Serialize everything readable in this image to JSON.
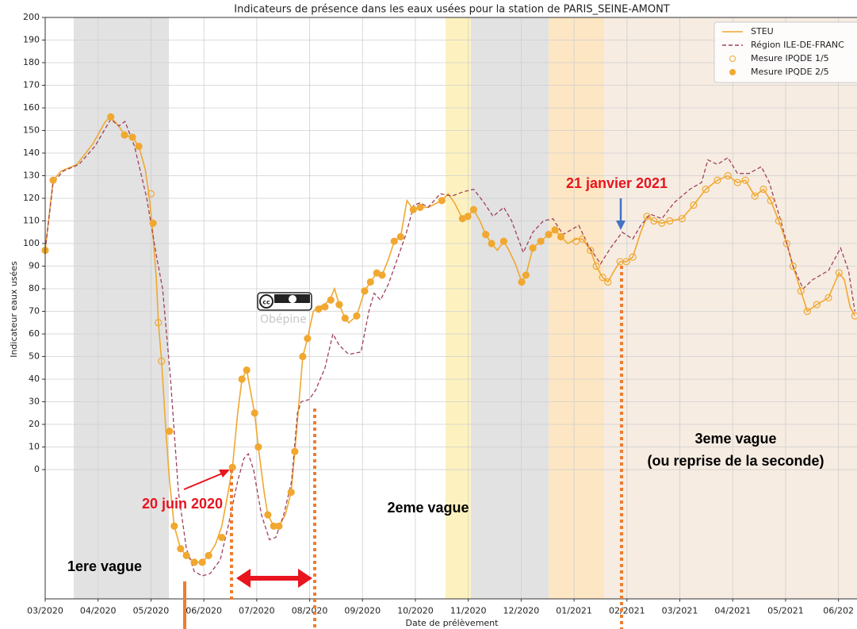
{
  "chart_data": {
    "type": "line",
    "title": "Indicateurs de présence dans les eaux usées pour la station de PARIS_SEINE-AMONT",
    "xlabel": "Date de prélèvement",
    "ylabel": "Indicateur eaux usées",
    "xlim": [
      0,
      15.35
    ],
    "ylim": [
      -57,
      200
    ],
    "xticks": [
      {
        "value": 0,
        "label": "03/2020"
      },
      {
        "value": 1,
        "label": "04/2020"
      },
      {
        "value": 2,
        "label": "05/2020"
      },
      {
        "value": 3,
        "label": "06/2020"
      },
      {
        "value": 4,
        "label": "07/2020"
      },
      {
        "value": 5,
        "label": "08/2020"
      },
      {
        "value": 6,
        "label": "09/2020"
      },
      {
        "value": 7,
        "label": "10/2020"
      },
      {
        "value": 8,
        "label": "11/2020"
      },
      {
        "value": 9,
        "label": "12/2020"
      },
      {
        "value": 10,
        "label": "01/2021"
      },
      {
        "value": 11,
        "label": "02/2021"
      },
      {
        "value": 12,
        "label": "03/2021"
      },
      {
        "value": 13,
        "label": "04/2021"
      },
      {
        "value": 14,
        "label": "05/2021"
      },
      {
        "value": 15,
        "label": "06/202"
      }
    ],
    "yticks": [
      0,
      10,
      20,
      30,
      40,
      50,
      60,
      70,
      80,
      90,
      100,
      110,
      120,
      130,
      140,
      150,
      160,
      170,
      180,
      190,
      200
    ],
    "grid": true,
    "legend": "upper right",
    "bands": [
      {
        "start": 0.54,
        "end": 2.34,
        "color": "#e2e2e2"
      },
      {
        "start": 7.57,
        "end": 8.05,
        "color": "#fdf2bf"
      },
      {
        "start": 8.05,
        "end": 9.52,
        "color": "#e2e2e2"
      },
      {
        "start": 9.52,
        "end": 10.57,
        "color": "#fde6c3"
      },
      {
        "start": 10.57,
        "end": 15.35,
        "color": "#f6ece2"
      }
    ],
    "series": [
      {
        "name": "STEU",
        "color": "#f0a830",
        "style": "line",
        "x": [
          0,
          0.15,
          0.3,
          0.6,
          0.9,
          1.14,
          1.24,
          1.39,
          1.5,
          1.65,
          1.77,
          1.89,
          1.96,
          2.02,
          2.1,
          2.14,
          2.2,
          2.28,
          2.35,
          2.44,
          2.56,
          2.67,
          2.82,
          2.97,
          3.09,
          3.22,
          3.34,
          3.46,
          3.54,
          3.64,
          3.72,
          3.81,
          3.88,
          3.96,
          4.03,
          4.14,
          4.21,
          4.32,
          4.42,
          4.54,
          4.65,
          4.72,
          4.8,
          4.87,
          4.96,
          5.07,
          5.17,
          5.29,
          5.4,
          5.47,
          5.56,
          5.67,
          5.74,
          5.89,
          6.04,
          6.15,
          6.27,
          6.37,
          6.49,
          6.6,
          6.72,
          6.84,
          6.96,
          7.09,
          7.24,
          7.5,
          7.62,
          7.74,
          7.89,
          7.99,
          8.1,
          8.22,
          8.33,
          8.44,
          8.55,
          8.67,
          8.77,
          8.89,
          9.01,
          9.09,
          9.22,
          9.37,
          9.52,
          9.64,
          9.75,
          9.88,
          10.04,
          10.16,
          10.31,
          10.42,
          10.54,
          10.64,
          10.76,
          10.87,
          10.99,
          11.11,
          11.26,
          11.38,
          11.51,
          11.66,
          11.81,
          12.04,
          12.26,
          12.49,
          12.71,
          12.91,
          13.09,
          13.24,
          13.42,
          13.58,
          13.72,
          13.87,
          14.02,
          14.14,
          14.29,
          14.41,
          14.59,
          14.81,
          15.01,
          15.11,
          15.22,
          15.31
        ],
        "values": [
          97,
          128,
          132,
          135,
          144,
          154,
          156,
          152,
          148,
          147,
          143,
          133,
          122,
          109,
          85,
          65,
          48,
          18,
          -5,
          -25,
          -35,
          -38,
          -41,
          -41,
          -38,
          -33,
          -25,
          -10,
          1,
          25,
          40,
          44,
          35,
          25,
          10,
          -10,
          -20,
          -25,
          -25,
          -20,
          -10,
          8,
          30,
          50,
          58,
          70,
          72,
          73,
          76,
          80,
          73,
          67,
          65,
          68,
          79,
          83,
          87,
          86,
          93,
          101,
          103,
          119,
          115,
          116,
          116,
          119,
          122,
          118,
          111,
          112,
          115,
          110,
          104,
          100,
          97,
          101,
          97,
          91,
          83,
          86,
          98,
          101,
          104,
          106,
          103,
          100,
          102,
          102,
          97,
          90,
          85,
          83,
          88,
          92,
          92,
          94,
          105,
          112,
          110,
          109,
          110,
          111,
          117,
          124,
          128,
          130,
          127,
          128,
          121,
          124,
          119,
          110,
          100,
          90,
          79,
          70,
          73,
          76,
          87,
          84,
          72,
          68
        ]
      },
      {
        "name": "Région ILE-DE-FRANC",
        "color": "#a0405a",
        "style": "dashed",
        "x": [
          0,
          0.15,
          0.34,
          0.64,
          0.94,
          1.24,
          1.39,
          1.51,
          1.69,
          1.92,
          2.1,
          2.22,
          2.37,
          2.52,
          2.67,
          2.82,
          2.97,
          3.12,
          3.31,
          3.46,
          3.64,
          3.76,
          3.84,
          3.94,
          4.09,
          4.24,
          4.36,
          4.51,
          4.66,
          4.77,
          4.84,
          4.99,
          5.11,
          5.29,
          5.44,
          5.56,
          5.74,
          5.97,
          6.12,
          6.22,
          6.34,
          6.49,
          6.64,
          6.82,
          6.97,
          7.09,
          7.24,
          7.47,
          7.69,
          7.92,
          8.1,
          8.3,
          8.47,
          8.67,
          8.82,
          9.04,
          9.22,
          9.42,
          9.6,
          9.79,
          9.94,
          10.09,
          10.27,
          10.5,
          10.69,
          10.91,
          11.11,
          11.26,
          11.44,
          11.66,
          11.89,
          12.19,
          12.41,
          12.53,
          12.71,
          12.91,
          13.09,
          13.31,
          13.54,
          13.69,
          13.91,
          14.14,
          14.33,
          14.51,
          14.81,
          15.04,
          15.19,
          15.31
        ],
        "values": [
          97,
          127,
          132,
          135,
          143,
          155,
          152,
          154,
          143,
          120,
          95,
          80,
          40,
          -10,
          -35,
          -45,
          -47,
          -46,
          -40,
          -25,
          -5,
          5,
          7,
          0,
          -20,
          -31,
          -30,
          -20,
          -5,
          25,
          30,
          31,
          35,
          45,
          60,
          55,
          51,
          52,
          70,
          78,
          75,
          82,
          92,
          104,
          117,
          118,
          116,
          122,
          121,
          123,
          124,
          118,
          112,
          116,
          110,
          96,
          105,
          110,
          111,
          104,
          106,
          108,
          99,
          91,
          98,
          105,
          102,
          108,
          113,
          111,
          118,
          124,
          127,
          137,
          135,
          138,
          131,
          131,
          134,
          127,
          110,
          90,
          80,
          84,
          88,
          98,
          88,
          70
        ]
      },
      {
        "name": "Mesure IPQDE 1/5",
        "color": "#f0a830",
        "style": "hollow",
        "x": [
          2.0,
          2.14,
          2.2,
          10.04,
          10.16,
          10.31,
          10.42,
          10.54,
          10.64,
          10.87,
          10.99,
          11.11,
          11.38,
          11.51,
          11.66,
          11.81,
          12.04,
          12.26,
          12.49,
          12.71,
          12.91,
          13.09,
          13.24,
          13.42,
          13.58,
          13.72,
          13.87,
          14.02,
          14.14,
          14.29,
          14.41,
          14.59,
          14.81,
          15.01,
          15.31
        ],
        "values": [
          122,
          65,
          48,
          101,
          102,
          97,
          90,
          85,
          83,
          92,
          92,
          94,
          112,
          110,
          109,
          110,
          111,
          117,
          124,
          128,
          130,
          127,
          128,
          121,
          124,
          119,
          110,
          100,
          90,
          79,
          70,
          73,
          76,
          87,
          68
        ]
      },
      {
        "name": "Mesure IPQDE 2/5",
        "color": "#f0a830",
        "style": "filled",
        "x": [
          0,
          0.15,
          1.24,
          1.5,
          1.65,
          1.77,
          2.04,
          2.35,
          2.44,
          2.56,
          2.67,
          2.82,
          2.97,
          3.09,
          3.34,
          3.54,
          3.72,
          3.81,
          3.96,
          4.03,
          4.21,
          4.32,
          4.42,
          4.65,
          4.72,
          4.87,
          4.96,
          5.17,
          5.29,
          5.4,
          5.56,
          5.67,
          5.89,
          6.04,
          6.15,
          6.27,
          6.37,
          6.6,
          6.72,
          6.96,
          7.09,
          7.5,
          7.89,
          7.99,
          8.1,
          8.33,
          8.44,
          8.67,
          9.01,
          9.09,
          9.22,
          9.37,
          9.52,
          9.64,
          9.75
        ],
        "values": [
          97,
          128,
          156,
          148,
          147,
          143,
          109,
          17,
          -25,
          -35,
          -38,
          -41,
          -41,
          -38,
          -30,
          1,
          40,
          44,
          25,
          10,
          -20,
          -25,
          -25,
          -10,
          8,
          50,
          58,
          71,
          72,
          75,
          73,
          67,
          68,
          79,
          83,
          87,
          86,
          101,
          103,
          115,
          116,
          119,
          111,
          112,
          115,
          104,
          100,
          101,
          83,
          86,
          98,
          101,
          104,
          106,
          103
        ]
      }
    ],
    "watermark": "Obépine",
    "annotations": [
      "20 juin 2020",
      "21 janvier 2021",
      "1ere vague",
      "2eme vague",
      "3eme vague",
      "(ou reprise de la seconde)"
    ]
  }
}
